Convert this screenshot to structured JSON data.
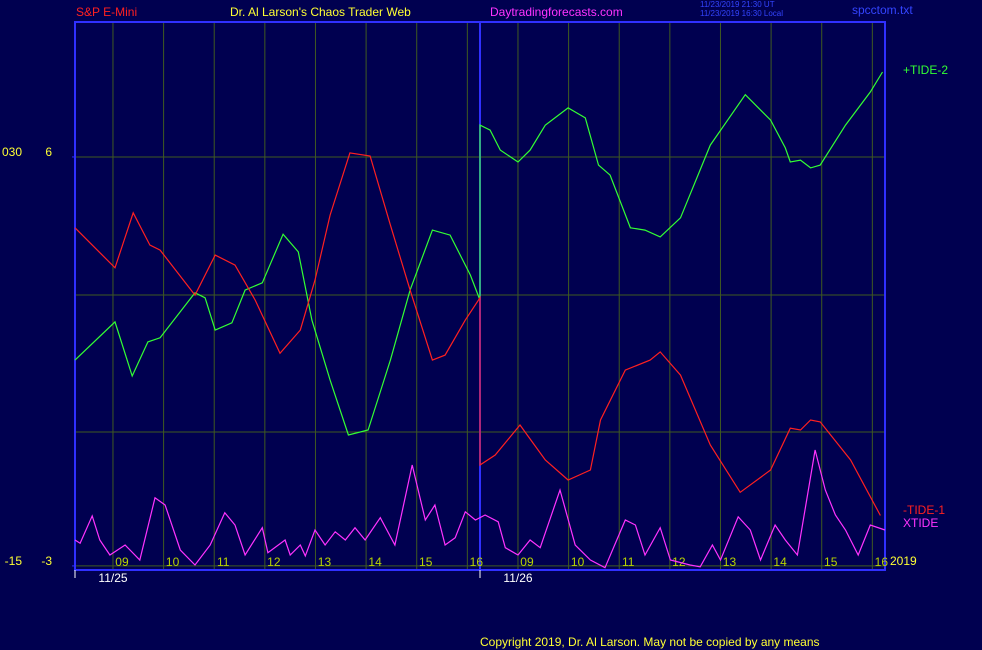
{
  "chart_data": {
    "type": "line",
    "title": "Dr. Al Larson's Chaos Trader Web",
    "symbol": "S&P E-Mini",
    "site": "Daytradingforecasts.com",
    "file": "spcctom.txt",
    "timestamps": [
      "11/23/2019 21:30 UT",
      "11/23/2019 16:30 Local"
    ],
    "year": "2019",
    "copyright": "Copyright 2019, Dr. Al Larson. May not be copied by any means",
    "xlim": [
      0,
      16
    ],
    "ylim": [
      -3.09,
      8.97
    ],
    "yticks": [
      6,
      -3
    ],
    "y2lim": [
      -15.45,
      44.85
    ],
    "y2ticks": [
      {
        "value": 30,
        "label": "030"
      },
      -15
    ],
    "xticks": [
      {
        "value": 0.75,
        "label": "09"
      },
      {
        "value": 1.75,
        "label": "10"
      },
      {
        "value": 2.75,
        "label": "11"
      },
      {
        "value": 3.75,
        "label": "12"
      },
      {
        "value": 4.75,
        "label": "13"
      },
      {
        "value": 5.75,
        "label": "14"
      },
      {
        "value": 6.75,
        "label": "15"
      },
      {
        "value": 7.75,
        "label": "16"
      },
      {
        "value": 8.75,
        "label": "09"
      },
      {
        "value": 9.75,
        "label": "10"
      },
      {
        "value": 10.75,
        "label": "11"
      },
      {
        "value": 11.75,
        "label": "12"
      },
      {
        "value": 12.75,
        "label": "13"
      },
      {
        "value": 13.75,
        "label": "14"
      },
      {
        "value": 14.75,
        "label": "15"
      },
      {
        "value": 15.75,
        "label": "16"
      }
    ],
    "date_labels": [
      {
        "value": 0,
        "label": "11/25"
      },
      {
        "value": 8,
        "label": "11/26"
      }
    ],
    "grid": true,
    "series": [
      {
        "name": "+TIDE-2",
        "color": "#33ff33",
        "x": [
          0,
          0.79,
          1.13,
          1.44,
          1.68,
          2.37,
          2.57,
          2.77,
          3.1,
          3.36,
          3.7,
          4.11,
          4.41,
          4.68,
          5.04,
          5.4,
          5.79,
          6.23,
          6.62,
          7.06,
          7.41,
          7.81,
          8.0,
          8.0,
          8.2,
          8.4,
          8.75,
          8.99,
          9.29,
          9.74,
          10.08,
          10.34,
          10.57,
          10.97,
          11.26,
          11.56,
          11.96,
          12.55,
          13.24,
          13.74,
          14.03,
          14.13,
          14.33,
          14.53,
          14.72,
          15.22,
          15.71,
          15.95
        ],
        "values": [
          1.53,
          2.37,
          1.18,
          1.93,
          2.02,
          3.01,
          2.9,
          2.19,
          2.35,
          3.07,
          3.23,
          4.3,
          3.91,
          2.41,
          1.09,
          -0.12,
          -0.01,
          1.53,
          3.07,
          4.39,
          4.28,
          3.4,
          2.85,
          6.7,
          6.59,
          6.15,
          5.89,
          6.15,
          6.7,
          7.08,
          6.86,
          5.82,
          5.6,
          4.44,
          4.39,
          4.24,
          4.66,
          6.26,
          7.37,
          6.81,
          6.2,
          5.89,
          5.93,
          5.76,
          5.82,
          6.7,
          7.43,
          7.87
        ]
      },
      {
        "name": "-TIDE-1",
        "color": "#ff2020",
        "x": [
          0,
          0.79,
          1.15,
          1.48,
          1.68,
          2.37,
          2.77,
          3.16,
          3.56,
          4.05,
          4.45,
          4.74,
          5.04,
          5.43,
          5.83,
          6.23,
          6.62,
          7.06,
          7.31,
          7.71,
          8.0,
          8.0,
          8.3,
          8.79,
          9.29,
          9.74,
          10.18,
          10.38,
          10.87,
          11.36,
          11.56,
          11.96,
          12.55,
          13.14,
          13.74,
          14.13,
          14.33,
          14.53,
          14.72,
          15.32,
          15.91
        ],
        "values": [
          4.44,
          3.56,
          4.77,
          4.06,
          3.95,
          2.96,
          3.84,
          3.62,
          2.85,
          1.68,
          2.19,
          3.29,
          4.72,
          6.09,
          6.02,
          4.5,
          3.07,
          1.53,
          1.64,
          2.41,
          2.9,
          -0.78,
          -0.56,
          0.1,
          -0.67,
          -1.11,
          -0.89,
          0.21,
          1.31,
          1.53,
          1.71,
          1.2,
          -0.34,
          -1.38,
          -0.89,
          0.03,
          -0.01,
          0.21,
          0.17,
          -0.67,
          -1.89
        ]
      },
      {
        "name": "XTIDE",
        "color": "#ff33ff",
        "x": [
          0,
          0.1,
          0.34,
          0.49,
          0.69,
          0.99,
          1.28,
          1.58,
          1.78,
          2.08,
          2.37,
          2.67,
          2.96,
          3.16,
          3.36,
          3.7,
          3.81,
          4.15,
          4.25,
          4.45,
          4.55,
          4.74,
          4.94,
          5.14,
          5.34,
          5.53,
          5.73,
          6.03,
          6.32,
          6.66,
          6.92,
          7.11,
          7.31,
          7.51,
          7.71,
          7.91,
          8.1,
          8.36,
          8.5,
          8.75,
          8.99,
          9.19,
          9.58,
          9.88,
          10.18,
          10.47,
          10.87,
          11.07,
          11.26,
          11.56,
          11.76,
          12.15,
          12.35,
          12.59,
          12.75,
          13.1,
          13.34,
          13.54,
          13.83,
          14.03,
          14.27,
          14.62,
          14.82,
          15.02,
          15.22,
          15.47,
          15.71,
          16.0
        ],
        "values": [
          -2.43,
          -2.5,
          -1.9,
          -2.43,
          -2.76,
          -2.54,
          -2.87,
          -1.5,
          -1.66,
          -2.65,
          -2.98,
          -2.54,
          -1.83,
          -2.1,
          -2.76,
          -2.16,
          -2.71,
          -2.43,
          -2.76,
          -2.54,
          -2.78,
          -2.21,
          -2.54,
          -2.25,
          -2.43,
          -2.16,
          -2.43,
          -1.94,
          -2.54,
          -0.78,
          -1.99,
          -1.66,
          -2.54,
          -2.38,
          -1.81,
          -1.99,
          -1.88,
          -2.03,
          -2.6,
          -2.76,
          -2.43,
          -2.6,
          -1.33,
          -2.54,
          -2.87,
          -3.04,
          -1.99,
          -2.1,
          -2.76,
          -2.16,
          -2.87,
          -2.98,
          -3.02,
          -2.54,
          -2.87,
          -1.92,
          -2.21,
          -2.87,
          -2.1,
          -2.43,
          -2.76,
          -0.45,
          -1.33,
          -1.88,
          -2.21,
          -2.76,
          -2.1,
          -2.21
        ]
      }
    ]
  }
}
